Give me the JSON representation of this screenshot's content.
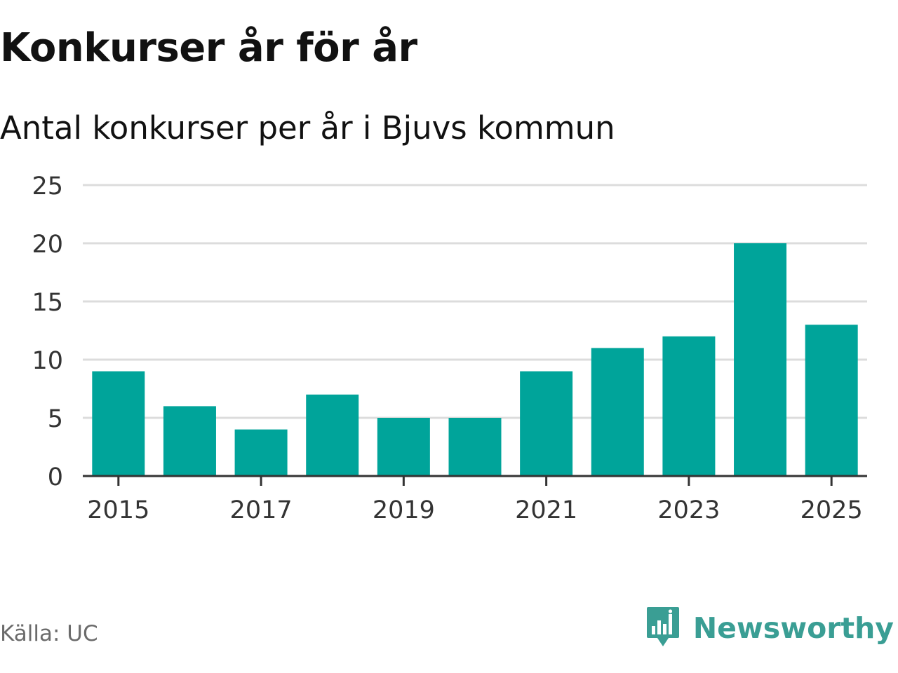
{
  "header": {
    "title": "Konkurser år för år",
    "subtitle": "Antal konkurser per år i Bjuvs kommun"
  },
  "chart_data": {
    "type": "bar",
    "title": "Konkurser år för år",
    "subtitle": "Antal konkurser per år i Bjuvs kommun",
    "categories": [
      "2015",
      "2016",
      "2017",
      "2018",
      "2019",
      "2020",
      "2021",
      "2022",
      "2023",
      "2024",
      "2025"
    ],
    "values": [
      9,
      6,
      4,
      7,
      5,
      5,
      9,
      11,
      12,
      20,
      13
    ],
    "x_tick_labels": [
      "2015",
      "2017",
      "2019",
      "2021",
      "2023",
      "2025"
    ],
    "y_ticks": [
      0,
      5,
      10,
      15,
      20,
      25
    ],
    "ylim": [
      0,
      25
    ],
    "xlabel": "",
    "ylabel": "",
    "grid": true,
    "bar_color": "#00a49a"
  },
  "footer": {
    "source": "Källa: UC",
    "brand": "Newsworthy",
    "brand_icon": "newsworthy-logo-icon",
    "brand_color": "#3a9e94"
  }
}
